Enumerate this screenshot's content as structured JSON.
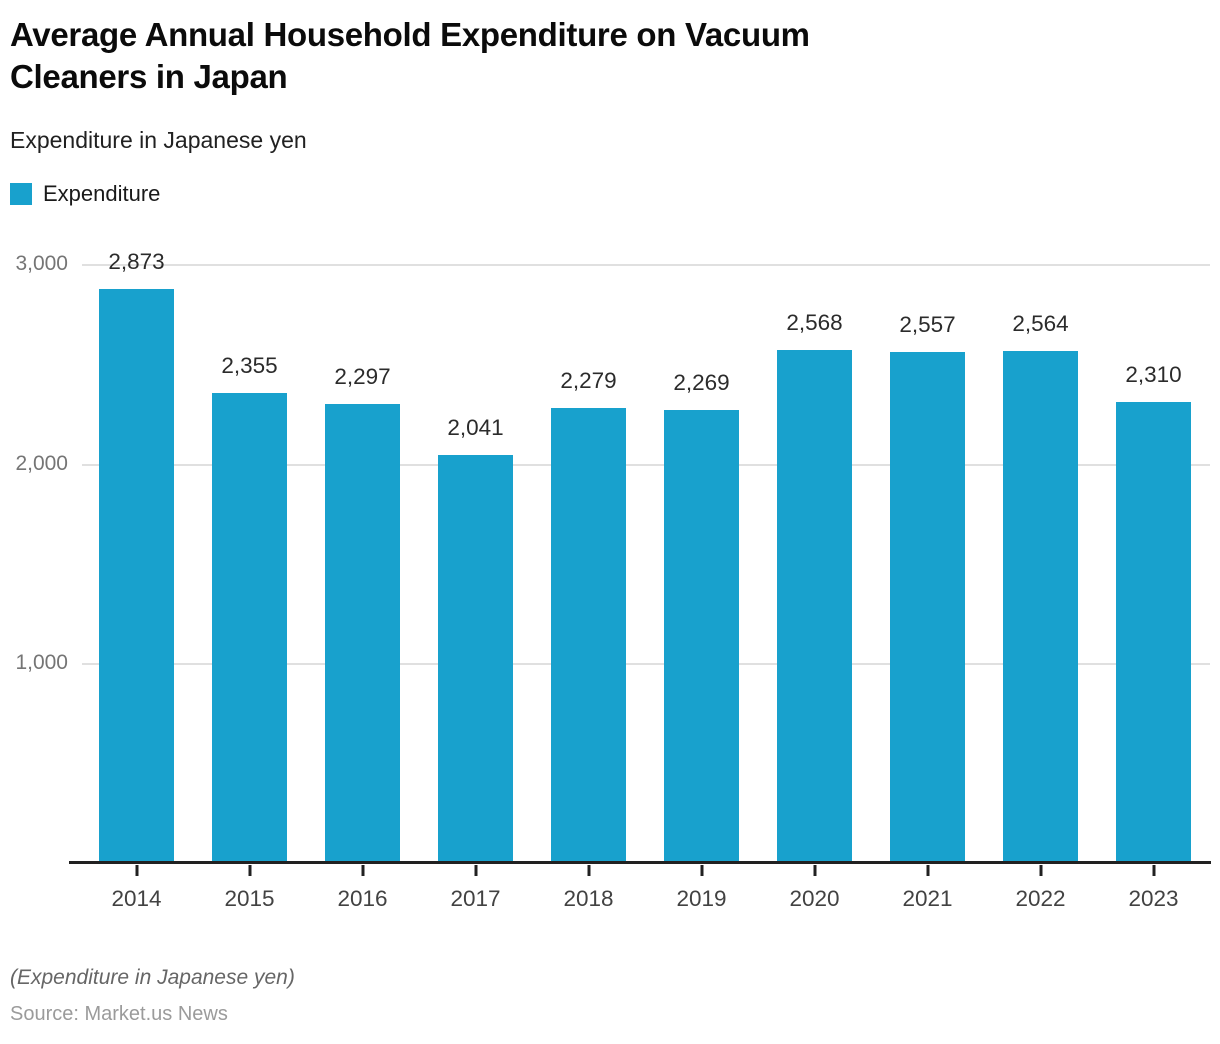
{
  "header": {
    "title": "Average Annual Household Expenditure on Vacuum Cleaners in Japan",
    "title_lines": [
      "Average Annual Household Expenditure on Vacuum",
      "Cleaners in Japan"
    ],
    "subtitle": "Expenditure in Japanese yen",
    "legend": [
      {
        "label": "Expenditure",
        "color": "#18A1CD"
      }
    ]
  },
  "chart_data": {
    "type": "bar",
    "title": "Average Annual Household Expenditure on Vacuum Cleaners in Japan",
    "subtitle": "Expenditure in Japanese yen",
    "categories": [
      "2014",
      "2015",
      "2016",
      "2017",
      "2018",
      "2019",
      "2020",
      "2021",
      "2022",
      "2023"
    ],
    "series": [
      {
        "name": "Expenditure",
        "values": [
          2873,
          2355,
          2297,
          2041,
          2279,
          2269,
          2568,
          2557,
          2564,
          2310
        ],
        "value_labels": [
          "2,873",
          "2,355",
          "2,297",
          "2,041",
          "2,279",
          "2,269",
          "2,568",
          "2,557",
          "2,564",
          "2,310"
        ]
      }
    ],
    "xlabel": "",
    "ylabel": "Expenditure in Japanese yen",
    "ylim": [
      0,
      3000
    ],
    "yticks": [
      {
        "value": 1000,
        "label": "1,000"
      },
      {
        "value": 2000,
        "label": "2,000"
      },
      {
        "value": 3000,
        "label": "3,000"
      }
    ],
    "grid": true,
    "legend_position": "top-left",
    "bar_color": "#18A1CD",
    "gridline_color": "#e0e0e0",
    "axis_color": "#212121"
  },
  "footer": {
    "note": "(Expenditure in Japanese yen)",
    "source": "Source: Market.us News"
  }
}
